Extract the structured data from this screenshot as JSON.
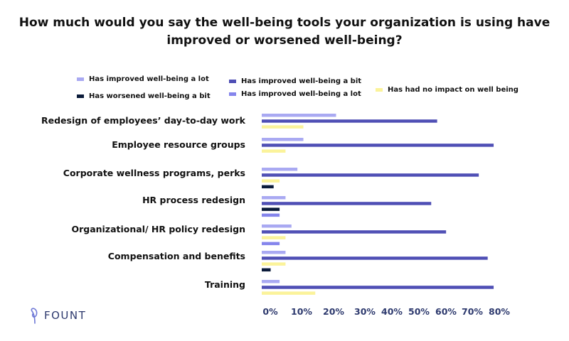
{
  "chart_data": {
    "type": "bar",
    "orientation": "horizontal",
    "title": "How much would you say the well-being tools your organization is using have improved or worsened well-being?",
    "categories": [
      "Redesign of employees’ day-to-day work",
      "Employee resource groups",
      "Corporate wellness programs, perks",
      "HR process redesign",
      "Organizational/ HR policy redesign",
      "Compensation and benefits",
      "Training"
    ],
    "series": [
      {
        "name": "Has improved well-being a lot",
        "color": "#a9a9f2",
        "values": [
          25,
          14,
          12,
          8,
          10,
          8,
          6
        ]
      },
      {
        "name": "Has improved well-being a bit",
        "color": "#4f4fb5",
        "values": [
          59,
          78,
          73,
          57,
          62,
          76,
          78
        ]
      },
      {
        "name": "Has had no impact on well being",
        "color": "#fbf39a",
        "values": [
          14,
          8,
          6,
          null,
          8,
          8,
          18
        ]
      },
      {
        "name": "Has worsened well-being a bit",
        "color": "#0b1b3a",
        "values": [
          null,
          null,
          4,
          6,
          null,
          3,
          null
        ]
      },
      {
        "name": "Has improved well-being a lot",
        "color": "#8585ec",
        "values": [
          null,
          null,
          null,
          6,
          6,
          null,
          null
        ]
      }
    ],
    "xlim": [
      0,
      80
    ],
    "x_ticks": [
      "0%",
      "10%",
      "20%",
      "30%",
      "40%",
      "50%",
      "60%",
      "70%",
      "80%"
    ],
    "grid": false,
    "legend_position": "top"
  },
  "logo": {
    "text": "FOUNT"
  }
}
